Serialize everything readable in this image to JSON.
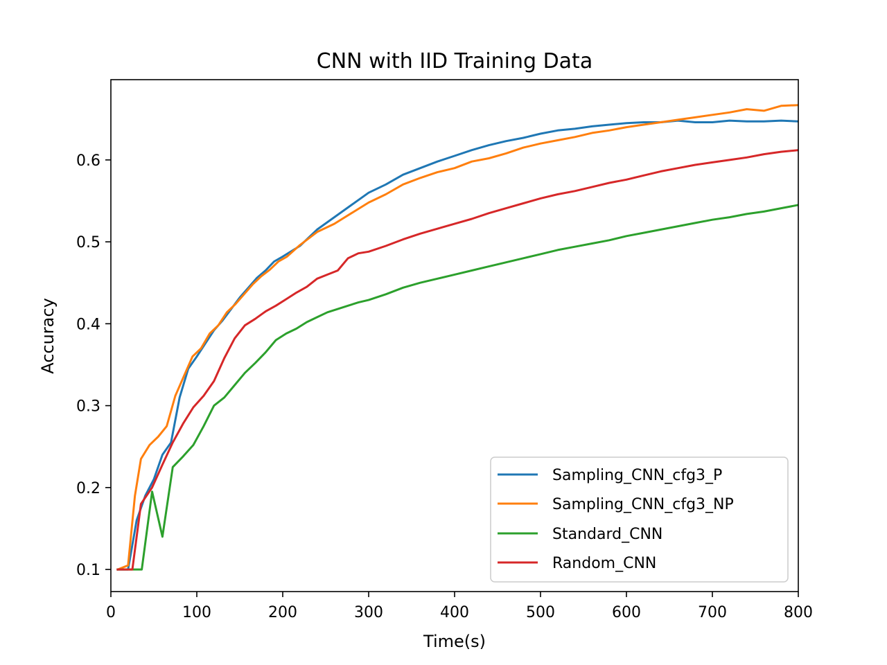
{
  "chart_data": {
    "type": "line",
    "title": "CNN with IID Training Data",
    "xlabel": "Time(s)",
    "ylabel": "Accuracy",
    "xlim": [
      0,
      800
    ],
    "ylim": [
      0.073,
      0.698
    ],
    "xticks": [
      0,
      100,
      200,
      300,
      400,
      500,
      600,
      700,
      800
    ],
    "yticks": [
      0.1,
      0.2,
      0.3,
      0.4,
      0.5,
      0.6
    ],
    "xtick_labels": [
      "0",
      "100",
      "200",
      "300",
      "400",
      "500",
      "600",
      "700",
      "800"
    ],
    "ytick_labels": [
      "0.1",
      "0.2",
      "0.3",
      "0.4",
      "0.5",
      "0.6"
    ],
    "grid": false,
    "legend_position": "lower-right",
    "series": [
      {
        "name": "Sampling_CNN_cfg3_P",
        "color": "#1f77b4",
        "x": [
          8,
          20,
          30,
          40,
          50,
          60,
          70,
          80,
          90,
          100,
          110,
          120,
          130,
          140,
          150,
          160,
          170,
          180,
          190,
          200,
          220,
          240,
          260,
          280,
          300,
          320,
          340,
          360,
          380,
          400,
          420,
          440,
          460,
          480,
          500,
          520,
          540,
          560,
          580,
          600,
          620,
          640,
          660,
          680,
          700,
          720,
          740,
          760,
          780,
          800
        ],
        "y": [
          0.1,
          0.1,
          0.16,
          0.19,
          0.21,
          0.24,
          0.255,
          0.31,
          0.345,
          0.36,
          0.376,
          0.392,
          0.404,
          0.418,
          0.432,
          0.444,
          0.456,
          0.465,
          0.476,
          0.482,
          0.495,
          0.515,
          0.53,
          0.545,
          0.56,
          0.57,
          0.582,
          0.59,
          0.598,
          0.605,
          0.612,
          0.618,
          0.623,
          0.627,
          0.632,
          0.636,
          0.638,
          0.641,
          0.643,
          0.645,
          0.646,
          0.646,
          0.648,
          0.646,
          0.646,
          0.648,
          0.647,
          0.647,
          0.648,
          0.647
        ]
      },
      {
        "name": "Sampling_CNN_cfg3_NP",
        "color": "#ff7f0e",
        "x": [
          8,
          20,
          28,
          35,
          45,
          55,
          65,
          75,
          85,
          95,
          105,
          115,
          125,
          135,
          145,
          155,
          165,
          175,
          185,
          195,
          205,
          220,
          240,
          260,
          280,
          300,
          320,
          340,
          360,
          380,
          400,
          420,
          440,
          460,
          480,
          500,
          520,
          540,
          560,
          580,
          600,
          620,
          640,
          660,
          680,
          700,
          720,
          740,
          760,
          780,
          800
        ],
        "y": [
          0.1,
          0.105,
          0.19,
          0.235,
          0.252,
          0.262,
          0.275,
          0.312,
          0.336,
          0.36,
          0.37,
          0.388,
          0.398,
          0.414,
          0.424,
          0.436,
          0.448,
          0.458,
          0.466,
          0.476,
          0.482,
          0.496,
          0.512,
          0.522,
          0.535,
          0.548,
          0.558,
          0.57,
          0.578,
          0.585,
          0.59,
          0.598,
          0.602,
          0.608,
          0.615,
          0.62,
          0.624,
          0.628,
          0.633,
          0.636,
          0.64,
          0.643,
          0.646,
          0.649,
          0.652,
          0.655,
          0.658,
          0.662,
          0.66,
          0.666,
          0.667
        ]
      },
      {
        "name": "Standard_CNN",
        "color": "#2ca02c",
        "x": [
          8,
          20,
          30,
          36,
          48,
          60,
          72,
          84,
          96,
          108,
          120,
          132,
          144,
          156,
          168,
          180,
          192,
          204,
          216,
          228,
          240,
          252,
          264,
          276,
          288,
          300,
          320,
          340,
          360,
          380,
          400,
          420,
          440,
          460,
          480,
          500,
          520,
          540,
          560,
          580,
          600,
          620,
          640,
          660,
          680,
          700,
          720,
          740,
          760,
          780,
          800
        ],
        "y": [
          0.1,
          0.1,
          0.1,
          0.1,
          0.195,
          0.14,
          0.225,
          0.238,
          0.252,
          0.275,
          0.3,
          0.31,
          0.325,
          0.34,
          0.352,
          0.365,
          0.38,
          0.388,
          0.394,
          0.402,
          0.408,
          0.414,
          0.418,
          0.422,
          0.426,
          0.429,
          0.436,
          0.444,
          0.45,
          0.455,
          0.46,
          0.465,
          0.47,
          0.475,
          0.48,
          0.485,
          0.49,
          0.494,
          0.498,
          0.502,
          0.507,
          0.511,
          0.515,
          0.519,
          0.523,
          0.527,
          0.53,
          0.534,
          0.537,
          0.541,
          0.545
        ]
      },
      {
        "name": "Random_CNN",
        "color": "#d62728",
        "x": [
          8,
          20,
          25,
          35,
          48,
          60,
          72,
          84,
          96,
          108,
          120,
          132,
          144,
          156,
          168,
          180,
          192,
          204,
          216,
          228,
          240,
          252,
          264,
          276,
          288,
          300,
          320,
          340,
          360,
          380,
          400,
          420,
          440,
          460,
          480,
          500,
          520,
          540,
          560,
          580,
          600,
          620,
          640,
          660,
          680,
          700,
          720,
          740,
          760,
          780,
          800
        ],
        "y": [
          0.1,
          0.1,
          0.1,
          0.18,
          0.2,
          0.228,
          0.255,
          0.278,
          0.298,
          0.312,
          0.33,
          0.358,
          0.382,
          0.398,
          0.406,
          0.415,
          0.422,
          0.43,
          0.438,
          0.445,
          0.455,
          0.46,
          0.465,
          0.48,
          0.486,
          0.488,
          0.495,
          0.503,
          0.51,
          0.516,
          0.522,
          0.528,
          0.535,
          0.541,
          0.547,
          0.553,
          0.558,
          0.562,
          0.567,
          0.572,
          0.576,
          0.581,
          0.586,
          0.59,
          0.594,
          0.597,
          0.6,
          0.603,
          0.607,
          0.61,
          0.612
        ]
      }
    ]
  }
}
